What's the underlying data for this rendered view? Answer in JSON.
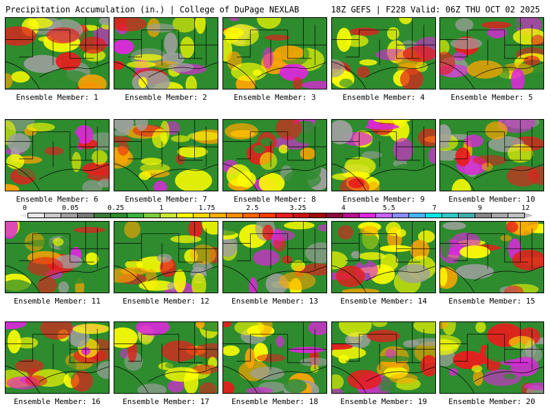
{
  "header": {
    "left": "Precipitation Accumulation (in.) | College of DuPage NEXLAB",
    "right": "18Z GEFS | F228 Valid: 06Z THU OCT 02 2025"
  },
  "panel_labels": [
    "Ensemble Member: 1",
    "Ensemble Member: 2",
    "Ensemble Member: 3",
    "Ensemble Member: 4",
    "Ensemble Member: 5",
    "Ensemble Member: 6",
    "Ensemble Member: 7",
    "Ensemble Member: 8",
    "Ensemble Member: 9",
    "Ensemble Member: 10",
    "Ensemble Member: 11",
    "Ensemble Member: 12",
    "Ensemble Member: 13",
    "Ensemble Member: 14",
    "Ensemble Member: 15",
    "Ensemble Member: 16",
    "Ensemble Member: 17",
    "Ensemble Member: 18",
    "Ensemble Member: 19",
    "Ensemble Member: 20"
  ],
  "colorbar": {
    "labels": [
      "0",
      "0.05",
      "0.25",
      "1",
      "1.75",
      "2.5",
      "3.25",
      "4",
      "5.5",
      "7",
      "9",
      "12"
    ],
    "colors": [
      "#e8e8e8",
      "#c8c8c8",
      "#a0a0a0",
      "#787878",
      "#3a7a3a",
      "#2e8b2e",
      "#3cb03c",
      "#7ccd3c",
      "#c8e632",
      "#ffff00",
      "#ffd700",
      "#ffb000",
      "#ff8c00",
      "#ff6400",
      "#ff3c00",
      "#e61e1e",
      "#c81414",
      "#a00a0a",
      "#8b0a3c",
      "#b4148c",
      "#dc28dc",
      "#c864ff",
      "#8c8cff",
      "#46b4ff",
      "#00e6e6",
      "#32c8c8",
      "#46aaaa",
      "#888888",
      "#a8a8a8",
      "#c0c0c0"
    ]
  },
  "field_colors": {
    "green": "#2e8b2e",
    "yellow": "#ffff00",
    "orange": "#ffa500",
    "red": "#e61e1e",
    "magenta": "#dc28dc",
    "gray": "#a0a0a0"
  }
}
